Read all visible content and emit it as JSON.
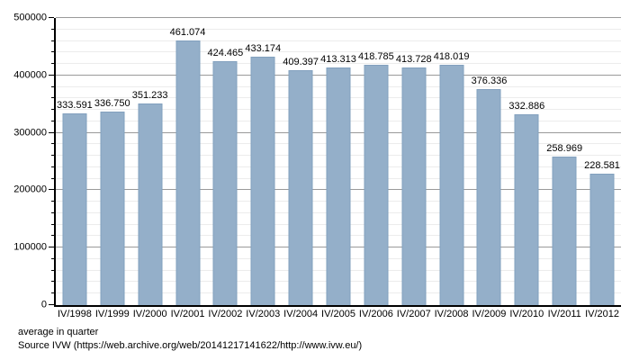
{
  "chart_data": {
    "type": "bar",
    "title": "",
    "categories": [
      "IV/1998",
      "IV/1999",
      "IV/2000",
      "IV/2001",
      "IV/2002",
      "IV/2003",
      "IV/2004",
      "IV/2005",
      "IV/2006",
      "IV/2007",
      "IV/2008",
      "IV/2009",
      "IV/2010",
      "IV/2011",
      "IV/2012"
    ],
    "values": [
      333591,
      336750,
      351233,
      461074,
      424465,
      433174,
      409397,
      413313,
      418785,
      413728,
      418019,
      376336,
      332886,
      258969,
      228581
    ],
    "value_labels": [
      "333.591",
      "336.750",
      "351.233",
      "461.074",
      "424.465",
      "433.174",
      "409.397",
      "413.313",
      "418.785",
      "413.728",
      "418.019",
      "376.336",
      "332.886",
      "258.969",
      "228.581"
    ],
    "xlabel": "",
    "ylabel": "",
    "ylim": [
      0,
      500000
    ],
    "y_major_step": 100000,
    "y_minor_step": 20000,
    "y_tick_labels": [
      "0",
      "100000",
      "200000",
      "300000",
      "400000",
      "500000"
    ],
    "grid": "horizontal, minor and major gridlines",
    "legend_position": "none",
    "bar_color": "#94afc9",
    "bar_border_color": "#82a0be",
    "major_grid_color": "#9a9a9a",
    "minor_grid_color": "#ececec"
  },
  "footer": {
    "caption": "average in quarter",
    "source": "Source IVW (https://web.archive.org/web/20141217141622/http://www.ivw.eu/)"
  }
}
